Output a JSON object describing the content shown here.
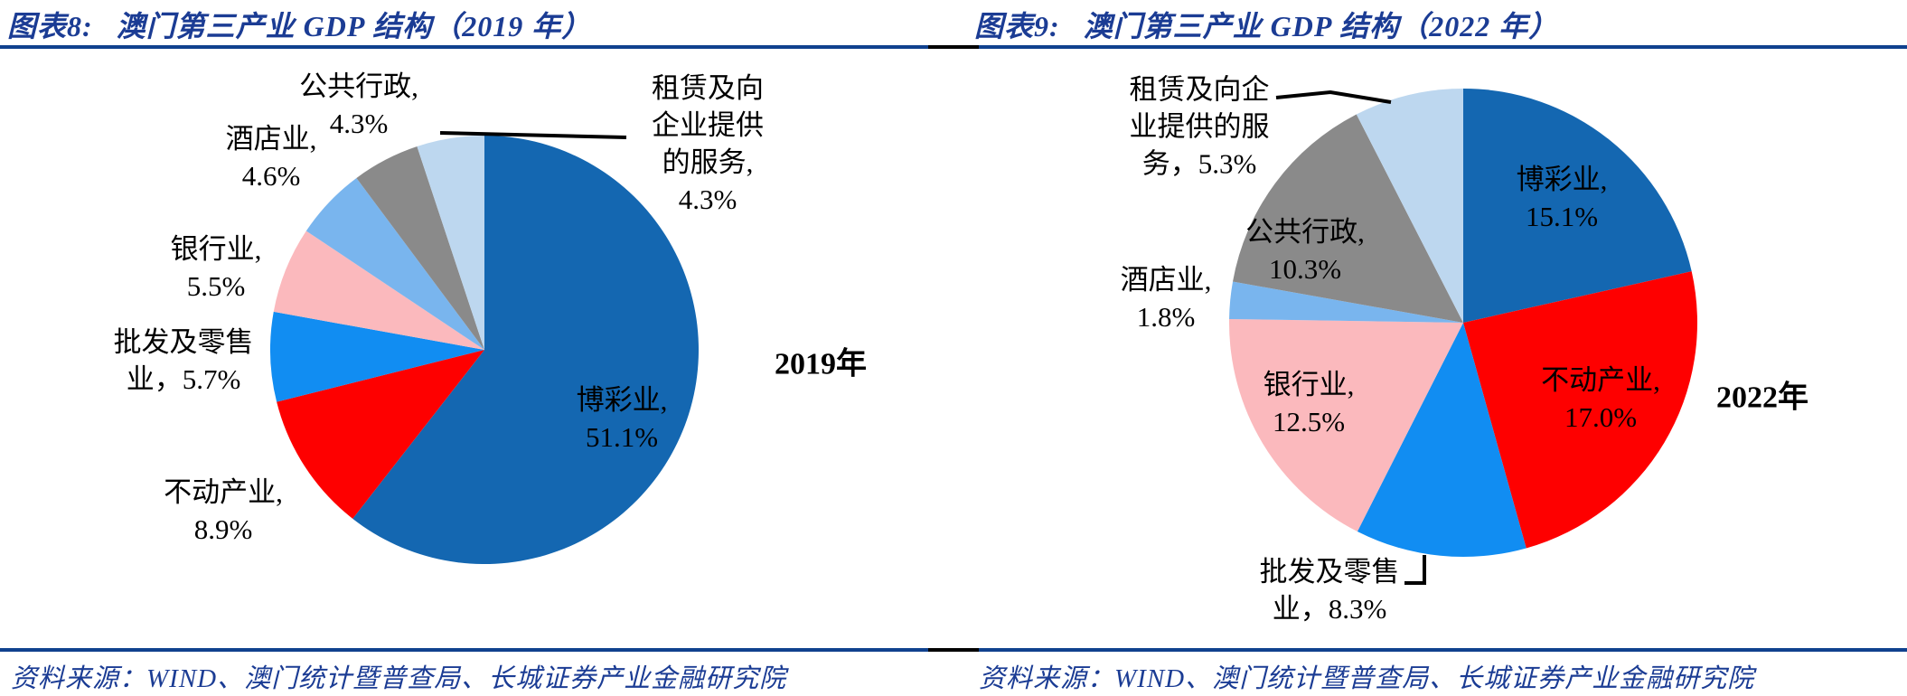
{
  "page": {
    "background": "#ffffff"
  },
  "colors": {
    "title_blue": "#1B3C94",
    "rule_blue": "#10418E",
    "rule_black": "#000000",
    "label_black": "#000000"
  },
  "panels": [
    {
      "title_label": "图表8:",
      "title_text": "澳门第三产业 GDP 结构（2019 年）",
      "year_annotation": "2019年",
      "source": "资料来源：WIND、澳门统计暨普查局、长城证券产业金融研究院"
    },
    {
      "title_label": "图表9:",
      "title_text": "澳门第三产业 GDP 结构（2022 年）",
      "year_annotation": "2022年",
      "source": "资料来源：WIND、澳门统计暨普查局、长城证券产业金融研究院"
    }
  ],
  "chart_data": [
    {
      "type": "pie",
      "figure_no": "图表8",
      "title": "澳门第三产业 GDP 结构（2019 年）",
      "year": "2019",
      "unit": "%",
      "start_angle": "top",
      "direction": "clockwise",
      "legend": false,
      "annotation": "2019年",
      "categories": [
        "博彩业",
        "不动产业",
        "批发及零售业",
        "银行业",
        "酒店业",
        "公共行政",
        "租赁及向企业提供的服务"
      ],
      "values": [
        51.1,
        8.9,
        5.7,
        5.5,
        4.6,
        4.3,
        4.3
      ],
      "colors": [
        "#1467B1",
        "#FE0000",
        "#118DF2",
        "#FBB9BD",
        "#79B5EE",
        "#8A8A8A",
        "#BDD7EF"
      ],
      "slice_labels": [
        [
          "博彩业,",
          "51.1%"
        ],
        [
          "不动产业,",
          "8.9%"
        ],
        [
          "批发及零售",
          "业，5.7%"
        ],
        [
          "银行业,",
          "5.5%"
        ],
        [
          "酒店业,",
          "4.6%"
        ],
        [
          "公共行政,",
          "4.3%"
        ],
        [
          "租赁及向",
          "企业提供",
          "的服务,",
          "4.3%"
        ]
      ]
    },
    {
      "type": "pie",
      "figure_no": "图表9",
      "title": "澳门第三产业 GDP 结构（2022 年）",
      "year": "2022",
      "unit": "%",
      "start_angle": "top",
      "direction": "clockwise",
      "legend": false,
      "annotation": "2022年",
      "categories": [
        "博彩业",
        "不动产业",
        "批发及零售业",
        "银行业",
        "酒店业",
        "公共行政",
        "租赁及向企业提供的服务"
      ],
      "values": [
        15.1,
        17.0,
        8.3,
        12.5,
        1.8,
        10.3,
        5.3
      ],
      "colors": [
        "#1467B1",
        "#FE0000",
        "#118DF2",
        "#FBB9BD",
        "#79B5EE",
        "#8A8A8A",
        "#BDD7EF"
      ],
      "slice_labels": [
        [
          "博彩业,",
          "15.1%"
        ],
        [
          "不动产业,",
          "17.0%"
        ],
        [
          "批发及零售",
          "业，8.3%"
        ],
        [
          "银行业,",
          "12.5%"
        ],
        [
          "酒店业,",
          "1.8%"
        ],
        [
          "公共行政,",
          "10.3%"
        ],
        [
          "租赁及向企",
          "业提供的服",
          "务，5.3%"
        ]
      ]
    }
  ]
}
